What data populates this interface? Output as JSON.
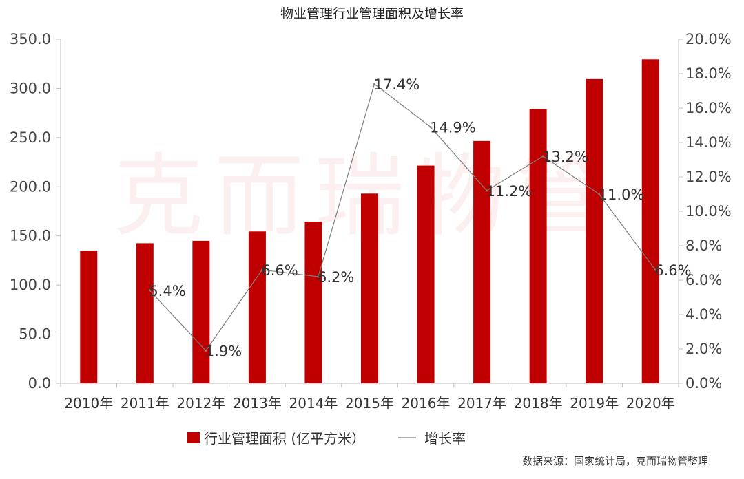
{
  "chart_data": {
    "type": "bar+line",
    "title": "物业管理行业管理面积及增长率",
    "categories": [
      "2010年",
      "2011年",
      "2012年",
      "2013年",
      "2014年",
      "2015年",
      "2016年",
      "2017年",
      "2018年",
      "2019年",
      "2020年"
    ],
    "series": [
      {
        "name": "行业管理面积 (亿平方米）",
        "type": "bar",
        "axis": "left",
        "color": "#c00000",
        "values": [
          135,
          142.5,
          145,
          154.5,
          164.5,
          193,
          221.5,
          246.5,
          279,
          309.5,
          329.5
        ]
      },
      {
        "name": "增长率",
        "type": "line",
        "axis": "right",
        "color": "#7f7f7f",
        "values": [
          null,
          5.4,
          1.9,
          6.6,
          6.2,
          17.4,
          14.9,
          11.2,
          13.2,
          11.0,
          6.6
        ],
        "labels": [
          "",
          "5.4%",
          "1.9%",
          "6.6%",
          "6.2%",
          "17.4%",
          "14.9%",
          "11.2%",
          "13.2%",
          "11.0%",
          "6.6%"
        ]
      }
    ],
    "y_left": {
      "ylim": [
        0,
        350
      ],
      "ticks": [
        "0.0",
        "50.0",
        "100.0",
        "150.0",
        "200.0",
        "250.0",
        "300.0",
        "350.0"
      ]
    },
    "y_right": {
      "ylim": [
        0,
        20
      ],
      "ticks": [
        "0.0%",
        "2.0%",
        "4.0%",
        "6.0%",
        "8.0%",
        "10.0%",
        "12.0%",
        "14.0%",
        "16.0%",
        "18.0%",
        "20.0%"
      ]
    },
    "grid": false,
    "legend_position": "bottom"
  },
  "watermark": "克而瑞物管",
  "source": "数据来源：国家统计局，克而瑞物管整理"
}
